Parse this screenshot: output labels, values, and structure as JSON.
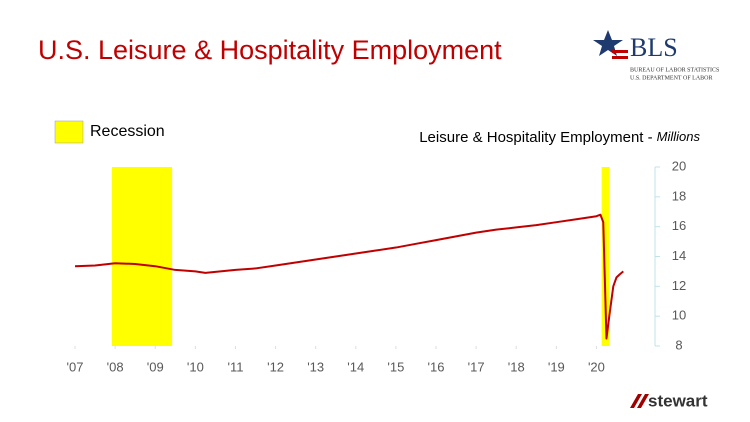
{
  "chart_data": {
    "type": "line",
    "title": "U.S. Leisure & Hospitality Employment",
    "recession_label": "Recession",
    "recession_color": "#ffff00",
    "recessions": [
      [
        2007.92,
        2009.42
      ],
      [
        2020.13,
        2020.33
      ]
    ],
    "y_unit": "Millions",
    "x": [
      2007.0,
      2007.5,
      2008.0,
      2008.5,
      2009.0,
      2009.5,
      2010.0,
      2010.25,
      2011.0,
      2011.5,
      2012.0,
      2012.5,
      2013.0,
      2013.5,
      2014.0,
      2014.5,
      2015.0,
      2015.5,
      2016.0,
      2016.5,
      2017.0,
      2017.5,
      2018.0,
      2018.5,
      2019.0,
      2019.5,
      2020.0,
      2020.1,
      2020.17,
      2020.25,
      2020.33,
      2020.42,
      2020.5,
      2020.58,
      2020.67
    ],
    "series": [
      {
        "name": "Leisure & Hospitality Employment -",
        "color": "#c00000",
        "values": [
          13.35,
          13.4,
          13.55,
          13.5,
          13.35,
          13.1,
          13.0,
          12.9,
          13.1,
          13.2,
          13.4,
          13.6,
          13.8,
          14.0,
          14.2,
          14.4,
          14.6,
          14.85,
          15.1,
          15.35,
          15.6,
          15.8,
          15.95,
          16.1,
          16.3,
          16.5,
          16.7,
          16.8,
          16.3,
          8.5,
          10.2,
          12.0,
          12.6,
          12.8,
          13.0
        ]
      }
    ],
    "xlim": [
      2006.75,
      2021.46
    ],
    "xticks": [
      {
        "value": 2007,
        "label": "'07"
      },
      {
        "value": 2008,
        "label": "'08"
      },
      {
        "value": 2009,
        "label": "'09"
      },
      {
        "value": 2010,
        "label": "'10"
      },
      {
        "value": 2011,
        "label": "'11"
      },
      {
        "value": 2012,
        "label": "'12"
      },
      {
        "value": 2013,
        "label": "'13"
      },
      {
        "value": 2014,
        "label": "'14"
      },
      {
        "value": 2015,
        "label": "'15"
      },
      {
        "value": 2016,
        "label": "'16"
      },
      {
        "value": 2017,
        "label": "'17"
      },
      {
        "value": 2018,
        "label": "'18"
      },
      {
        "value": 2019,
        "label": "'19"
      },
      {
        "value": 2020,
        "label": "'20"
      }
    ],
    "ylim": [
      8,
      20
    ],
    "yticks": [
      8,
      10,
      12,
      14,
      16,
      18,
      20
    ],
    "y_axis_side": "right"
  },
  "logos": {
    "bls": "BLS",
    "bls_line1": "BUREAU OF LABOR STATISTICS",
    "bls_line2": "U.S. DEPARTMENT OF LABOR",
    "stewart": "stewart"
  }
}
